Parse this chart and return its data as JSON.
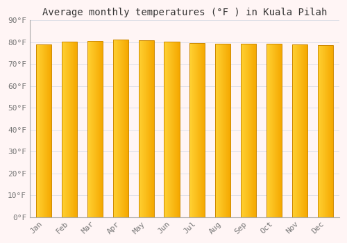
{
  "title": "Average monthly temperatures (°F ) in Kuala Pilah",
  "months": [
    "Jan",
    "Feb",
    "Mar",
    "Apr",
    "May",
    "Jun",
    "Jul",
    "Aug",
    "Sep",
    "Oct",
    "Nov",
    "Dec"
  ],
  "values": [
    78.8,
    80.1,
    80.6,
    81.0,
    80.8,
    80.1,
    79.5,
    79.3,
    79.3,
    79.3,
    78.8,
    78.6
  ],
  "bar_color_left": "#FFD033",
  "bar_color_right": "#F5A800",
  "bar_edge_color": "#CC8800",
  "background_color": "#FFF5F5",
  "plot_bg_color": "#FFF5F5",
  "grid_color": "#E0E0E8",
  "ylabel_color": "#777777",
  "xlabel_color": "#777777",
  "title_color": "#333333",
  "ylim": [
    0,
    90
  ],
  "yticks": [
    0,
    10,
    20,
    30,
    40,
    50,
    60,
    70,
    80,
    90
  ],
  "ytick_labels": [
    "0°F",
    "10°F",
    "20°F",
    "30°F",
    "40°F",
    "50°F",
    "60°F",
    "70°F",
    "80°F",
    "90°F"
  ],
  "title_fontsize": 10,
  "tick_fontsize": 8,
  "figsize": [
    5.0,
    3.5
  ],
  "dpi": 100,
  "bar_width": 0.6
}
